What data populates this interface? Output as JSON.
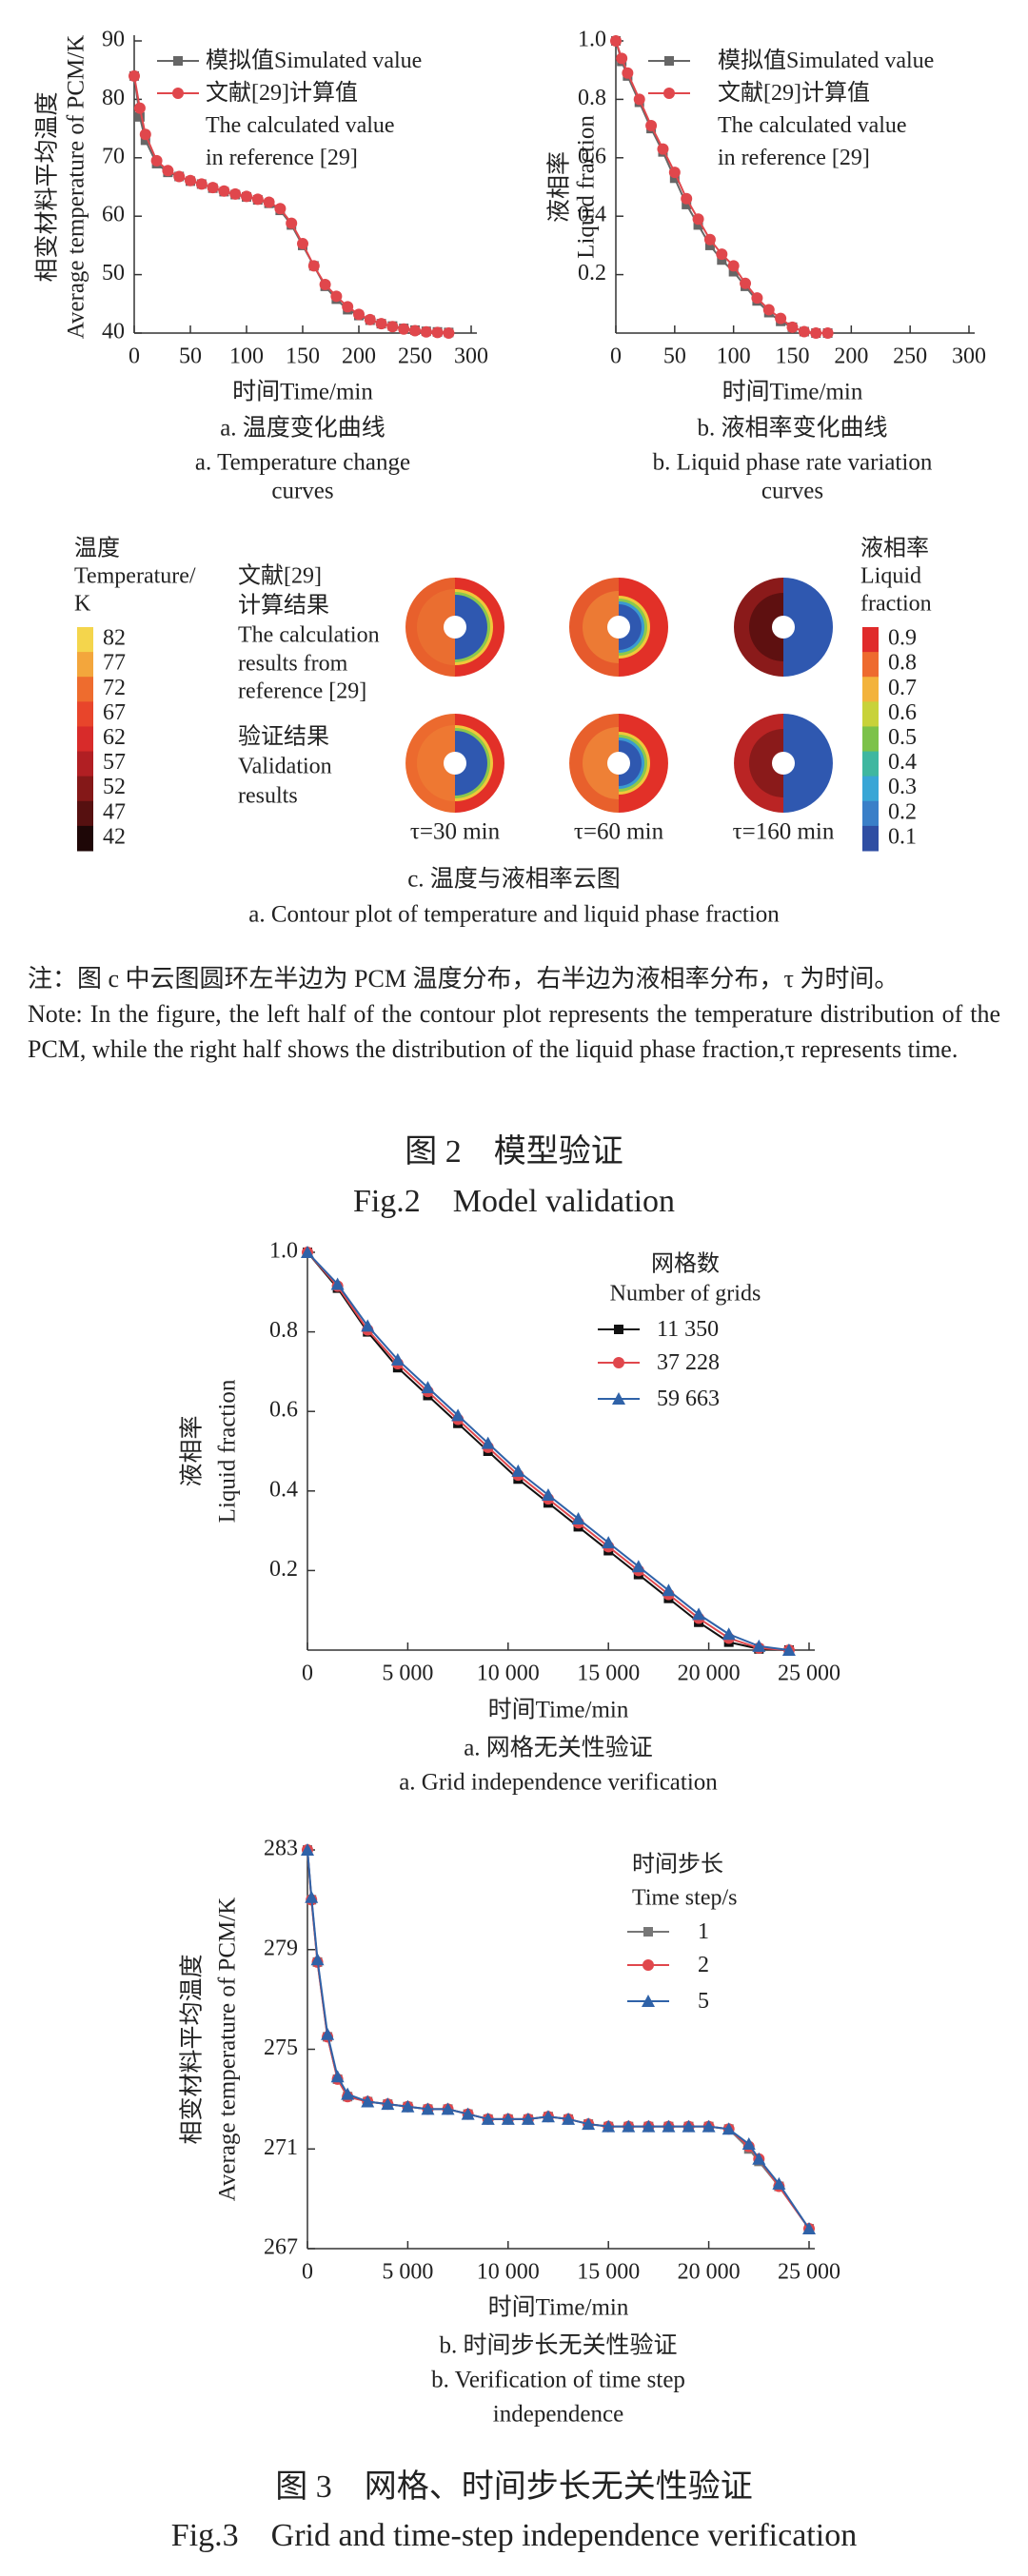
{
  "chart_data": [
    {
      "type": "line",
      "ylabel": [
        "相变材料平均温度",
        "Average temperature of PCM/K"
      ],
      "xlabel": "时间Time/min",
      "caption": [
        "a. 温度变化曲线",
        "a. Temperature change",
        "curves"
      ],
      "x": [
        0,
        5,
        10,
        20,
        30,
        40,
        50,
        60,
        70,
        80,
        90,
        100,
        110,
        120,
        130,
        140,
        150,
        160,
        170,
        180,
        190,
        200,
        210,
        220,
        230,
        240,
        250,
        260,
        270,
        280
      ],
      "xlim": [
        0,
        300
      ],
      "xticks": [
        0,
        50,
        100,
        150,
        200,
        250,
        300
      ],
      "ylim": [
        40,
        90
      ],
      "yticks": [
        40,
        50,
        60,
        70,
        80,
        90
      ],
      "series": [
        {
          "name": "模拟值Simulated value",
          "color": "#666666",
          "marker": "square",
          "values": [
            84,
            77,
            73,
            69,
            67.5,
            66.8,
            66,
            65.5,
            64.8,
            64.2,
            63.7,
            63.3,
            62.8,
            62.2,
            61,
            58.5,
            55,
            51.5,
            48,
            45.8,
            44,
            43,
            42.2,
            41.6,
            41.2,
            40.8,
            40.5,
            40.3,
            40.2,
            40.1
          ]
        },
        {
          "name": "文献[29]计算值\nThe calculated value\nin reference [29]",
          "color": "#e0474c",
          "marker": "circle",
          "values": [
            84,
            78.5,
            74,
            69.5,
            67.8,
            66.8,
            66.1,
            65.5,
            64.9,
            64.3,
            63.8,
            63.4,
            62.9,
            62.4,
            61.3,
            58.8,
            55.3,
            51.5,
            48.3,
            46.3,
            44.5,
            43.2,
            42.3,
            41.6,
            41.1,
            40.7,
            40.4,
            40.2,
            40.1,
            40
          ]
        }
      ]
    },
    {
      "type": "line",
      "ylabel": [
        "液相率",
        "Liquid fraction"
      ],
      "xlabel": "时间Time/min",
      "caption": [
        "b. 液相率变化曲线",
        "b. Liquid phase rate variation",
        "curves"
      ],
      "x": [
        0,
        5,
        10,
        20,
        30,
        40,
        50,
        60,
        70,
        80,
        90,
        100,
        110,
        120,
        130,
        140,
        150,
        160,
        170,
        180
      ],
      "xlim": [
        0,
        300
      ],
      "xticks": [
        0,
        50,
        100,
        150,
        200,
        250,
        300
      ],
      "ylim": [
        0,
        1
      ],
      "yticks": [
        0.2,
        0.4,
        0.6,
        0.8,
        {
          "value": 1,
          "label": "1.0"
        }
      ],
      "series": [
        {
          "name": "模拟值Simulated value",
          "color": "#666666",
          "marker": "square",
          "values": [
            1,
            0.93,
            0.88,
            0.79,
            0.7,
            0.62,
            0.53,
            0.44,
            0.37,
            0.3,
            0.25,
            0.21,
            0.16,
            0.11,
            0.07,
            0.04,
            0.02,
            0.005,
            0,
            0
          ]
        },
        {
          "name": "文献[29]计算值\nThe calculated value\nin reference [29]",
          "color": "#e0474c",
          "marker": "circle",
          "values": [
            1,
            0.94,
            0.89,
            0.8,
            0.71,
            0.63,
            0.55,
            0.46,
            0.39,
            0.32,
            0.27,
            0.23,
            0.17,
            0.12,
            0.08,
            0.05,
            0.02,
            0.005,
            0,
            0
          ]
        }
      ]
    },
    {
      "type": "line",
      "ylabel": [
        "液相率",
        "Liquid fraction"
      ],
      "xlabel": "时间Time/min",
      "caption": [
        "a. 网格无关性验证",
        "a. Grid independence verification"
      ],
      "legend_title": [
        "网格数",
        "Number of grids"
      ],
      "x": [
        0,
        1500,
        3000,
        4500,
        6000,
        7500,
        9000,
        10500,
        12000,
        13500,
        15000,
        16500,
        18000,
        19500,
        21000,
        22500,
        24000
      ],
      "xlim": [
        0,
        25000
      ],
      "xticks": [
        0,
        {
          "value": 5000,
          "label": "5 000"
        },
        {
          "value": 10000,
          "label": "10 000"
        },
        {
          "value": 15000,
          "label": "15 000"
        },
        {
          "value": 20000,
          "label": "20 000"
        },
        {
          "value": 25000,
          "label": "25 000"
        }
      ],
      "ylim": [
        0,
        1
      ],
      "yticks": [
        0.2,
        0.4,
        0.6,
        0.8,
        {
          "value": 1,
          "label": "1.0"
        }
      ],
      "series": [
        {
          "name": "11 350",
          "color": "#111111",
          "marker": "square",
          "values": [
            1,
            0.91,
            0.8,
            0.71,
            0.64,
            0.57,
            0.5,
            0.43,
            0.37,
            0.31,
            0.25,
            0.19,
            0.13,
            0.07,
            0.02,
            0.003,
            0
          ]
        },
        {
          "name": "37 228",
          "color": "#e0474c",
          "marker": "circle",
          "values": [
            1,
            0.915,
            0.805,
            0.72,
            0.65,
            0.58,
            0.51,
            0.44,
            0.38,
            0.32,
            0.26,
            0.2,
            0.14,
            0.08,
            0.03,
            0.005,
            0
          ]
        },
        {
          "name": "59 663",
          "color": "#2f62a8",
          "marker": "triangle",
          "values": [
            1,
            0.92,
            0.815,
            0.73,
            0.66,
            0.59,
            0.52,
            0.45,
            0.39,
            0.33,
            0.27,
            0.21,
            0.15,
            0.09,
            0.04,
            0.01,
            0
          ]
        }
      ]
    },
    {
      "type": "line",
      "ylabel": [
        "相变材料平均温度",
        "Average temperature of PCM/K"
      ],
      "xlabel": "时间Time/min",
      "caption": [
        "b. 时间步长无关性验证",
        "b. Verification of time step",
        "independence"
      ],
      "legend_title": [
        "时间步长",
        "Time step/s"
      ],
      "x": [
        0,
        200,
        500,
        1000,
        1500,
        2000,
        3000,
        4000,
        5000,
        6000,
        7000,
        8000,
        9000,
        10000,
        11000,
        12000,
        13000,
        14000,
        15000,
        16000,
        17000,
        18000,
        19000,
        20000,
        21000,
        22000,
        22500,
        23500,
        25000
      ],
      "xlim": [
        0,
        25000
      ],
      "xticks": [
        0,
        {
          "value": 5000,
          "label": "5 000"
        },
        {
          "value": 10000,
          "label": "10 000"
        },
        {
          "value": 15000,
          "label": "15 000"
        },
        {
          "value": 20000,
          "label": "20 000"
        },
        {
          "value": 25000,
          "label": "25 000"
        }
      ],
      "ylim": [
        267,
        283
      ],
      "yticks": [
        267,
        271,
        275,
        279,
        283
      ],
      "series": [
        {
          "name": "1",
          "color": "#777777",
          "marker": "square",
          "values": [
            283,
            281,
            278.5,
            275.5,
            273.8,
            273.1,
            272.9,
            272.8,
            272.7,
            272.6,
            272.6,
            272.4,
            272.2,
            272.2,
            272.2,
            272.3,
            272.2,
            272,
            271.9,
            271.9,
            271.9,
            271.9,
            271.9,
            271.9,
            271.8,
            271,
            270.5,
            269.5,
            267.8
          ]
        },
        {
          "name": "2",
          "color": "#e0474c",
          "marker": "circle",
          "values": [
            283,
            281,
            278.5,
            275.5,
            273.8,
            273.1,
            272.9,
            272.8,
            272.7,
            272.6,
            272.6,
            272.4,
            272.2,
            272.2,
            272.2,
            272.3,
            272.2,
            272,
            271.9,
            271.9,
            271.9,
            271.9,
            271.9,
            271.9,
            271.8,
            271.1,
            270.6,
            269.5,
            267.8
          ]
        },
        {
          "name": "5",
          "color": "#2f62a8",
          "marker": "triangle",
          "values": [
            283,
            281.1,
            278.6,
            275.6,
            273.9,
            273.2,
            272.9,
            272.8,
            272.7,
            272.6,
            272.6,
            272.4,
            272.2,
            272.2,
            272.2,
            272.3,
            272.2,
            272,
            271.9,
            271.9,
            271.9,
            271.9,
            271.9,
            271.9,
            271.8,
            271.2,
            270.6,
            269.6,
            267.8
          ]
        }
      ]
    }
  ],
  "contour": {
    "temp_title": [
      "温度",
      "Temperature/",
      "K"
    ],
    "temp_ticks": [
      82,
      77,
      72,
      67,
      62,
      57,
      52,
      47,
      42
    ],
    "temp_colors": [
      "#f4d54c",
      "#f3a63c",
      "#ee6c2e",
      "#e8452b",
      "#d82b2a",
      "#b11f23",
      "#841818",
      "#561010",
      "#1e0707"
    ],
    "liquid_title": [
      "液相率",
      "Liquid",
      "fraction"
    ],
    "liquid_ticks": [
      0.9,
      0.8,
      0.7,
      0.6,
      0.5,
      0.4,
      0.3,
      0.2,
      0.1
    ],
    "liquid_colors": [
      "#e02b2b",
      "#ee6a2e",
      "#f3b33c",
      "#c8d23a",
      "#7cc24a",
      "#3fb7a0",
      "#39a6d6",
      "#3a7fc8",
      "#2f4ea3"
    ],
    "rows": [
      [
        "文献[29]",
        "计算结果",
        "The calculation",
        "results from",
        "reference [29]"
      ],
      [
        "验证结果",
        "Validation",
        "results"
      ]
    ],
    "times": [
      "τ=30 min",
      "τ=60 min",
      "τ=160 min"
    ],
    "caption": [
      "c. 温度与液相率云图",
      "a. Contour plot of temperature and liquid phase fraction"
    ]
  },
  "note": {
    "zh": "注：图 c 中云图圆环左半边为 PCM 温度分布，右半边为液相率分布，τ 为时间。",
    "en": "Note: In the figure, the left half of the contour plot represents the temperature distribution of the PCM, while the right half shows the distribution of the liquid phase fraction,τ represents time."
  },
  "figure2": {
    "zh": "图 2　模型验证",
    "en": "Fig.2　Model validation"
  },
  "figure3": {
    "zh": "图 3　网格、时间步长无关性验证",
    "en": "Fig.3　Grid and time-step independence verification"
  }
}
